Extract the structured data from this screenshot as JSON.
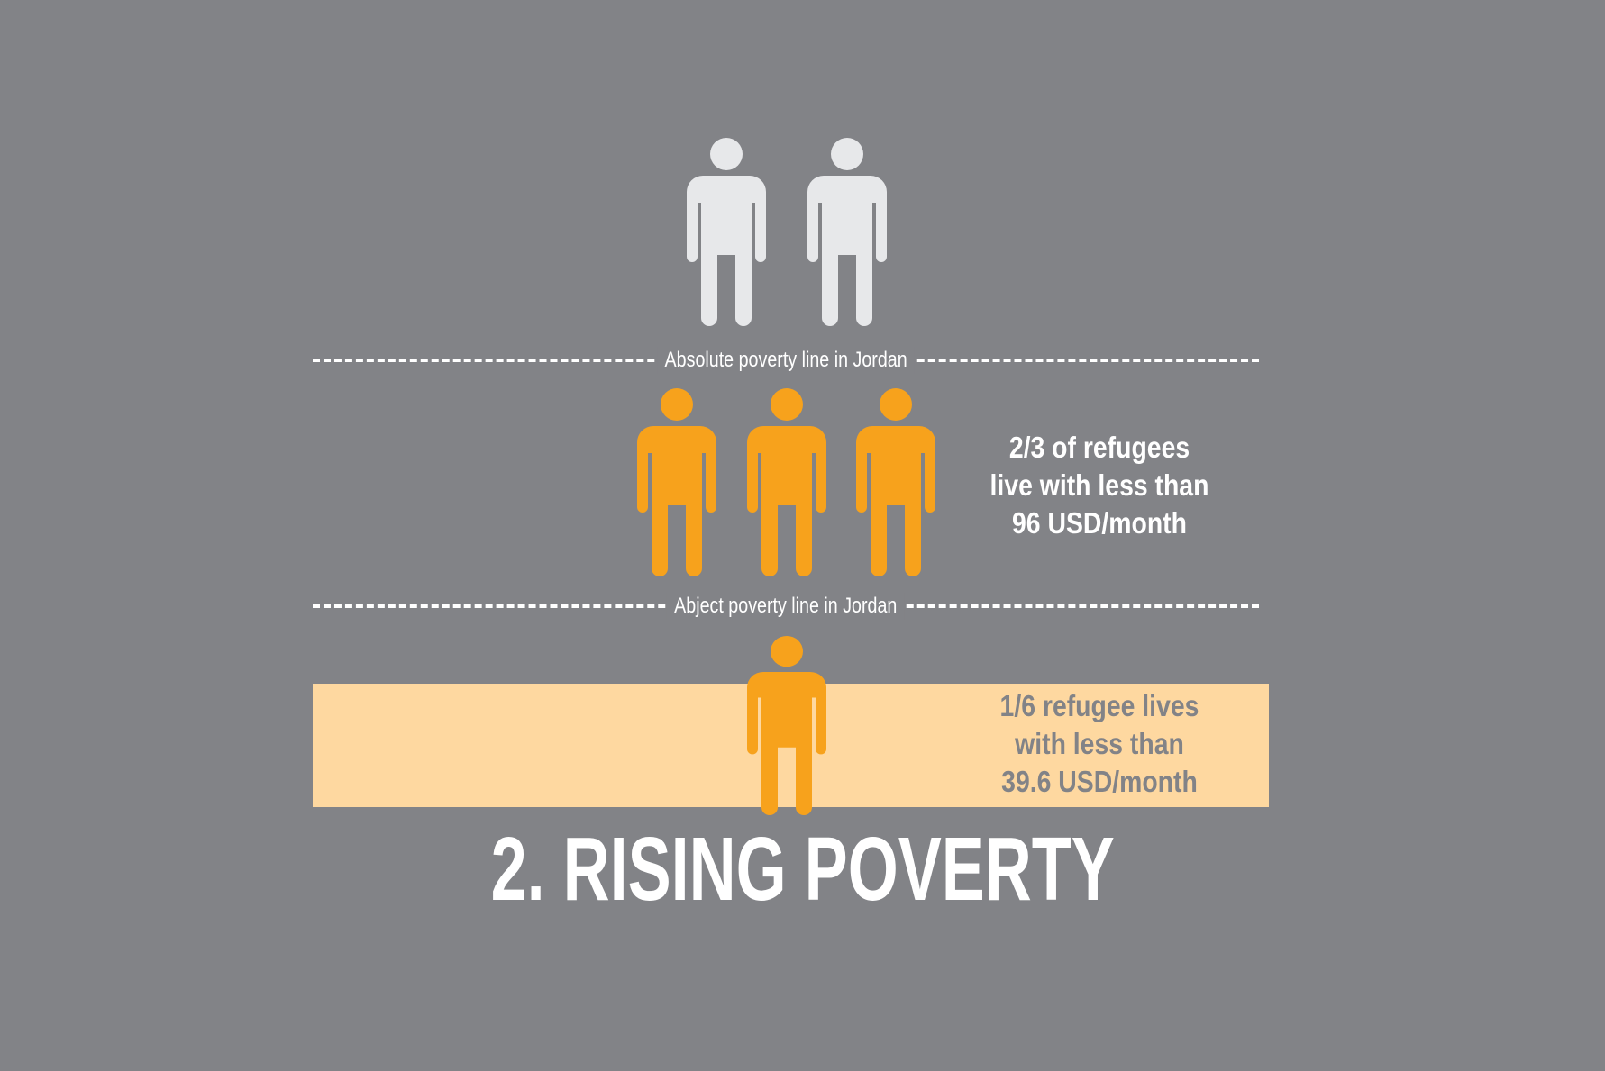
{
  "colors": {
    "background": "#828387",
    "person_above_line": "#e7e8ea",
    "person_refugee": "#f7a21c",
    "abject_band": "#fed8a0",
    "band_text": "#828387",
    "text_light": "#ffffff"
  },
  "absolute_line_label": "Absolute poverty line in Jordan",
  "abject_line_label": "Abject poverty line in Jordan",
  "stat_two_thirds": {
    "line1": "2/3 of refugees",
    "line2": "live with less than",
    "line3": "96 USD/month"
  },
  "stat_one_sixth": {
    "line1": "1/6 refugee lives",
    "line2": "with less than",
    "line3": "39.6 USD/month"
  },
  "title": "2. RISING POVERTY",
  "icons": {
    "above_absolute_line": "person-icon",
    "between_lines": "person-icon",
    "below_abject_line": "person-icon"
  }
}
